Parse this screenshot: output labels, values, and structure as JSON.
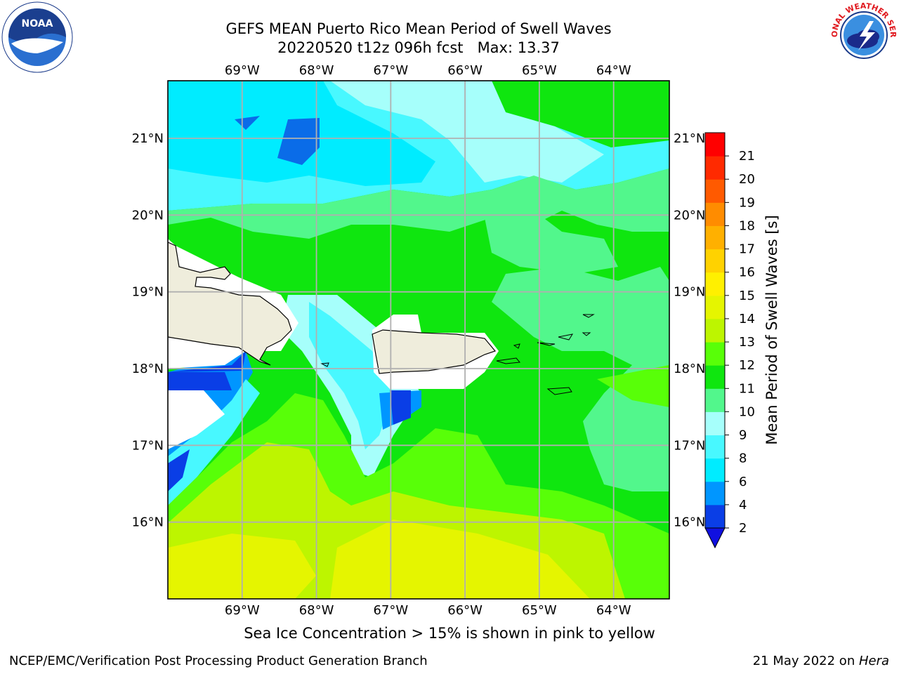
{
  "header": {
    "title_line1": "GEFS MEAN Puerto Rico Mean Period of Swell Waves",
    "title_line2": "20220520 t12z 096h fcst   Max: 13.37"
  },
  "logos": {
    "left": "NOAA",
    "right": "NATIONAL WEATHER SERVICE"
  },
  "map": {
    "lon_ticks": [
      "69°W",
      "68°W",
      "67°W",
      "66°W",
      "65°W",
      "64°W"
    ],
    "lat_ticks": [
      "21°N",
      "20°N",
      "19°N",
      "18°N",
      "17°N",
      "16°N"
    ],
    "lon_values": [
      -69,
      -68,
      -67,
      -66,
      -65,
      -64
    ],
    "lat_values": [
      21,
      20,
      19,
      18,
      17,
      16
    ],
    "lon_range": [
      -70,
      -63.25
    ],
    "lat_range": [
      15,
      21.75
    ],
    "grid": true,
    "land_color": "#efeddc",
    "gridline_color": "#b0b0b0"
  },
  "colorbar": {
    "label": "Mean Period of Swell Waves [s]",
    "ticks": [
      "21",
      "20",
      "19",
      "18",
      "17",
      "16",
      "15",
      "14",
      "13",
      "12",
      "11",
      "10",
      "9",
      "8",
      "6",
      "4",
      "2"
    ],
    "levels": [
      2,
      4,
      6,
      8,
      9,
      10,
      11,
      12,
      13,
      14,
      15,
      16,
      17,
      18,
      19,
      20,
      21
    ],
    "colors": [
      "#0a3ee6",
      "#0096ff",
      "#00ecff",
      "#48f8ff",
      "#a6fffb",
      "#52f78c",
      "#0fe60f",
      "#58ff08",
      "#bdf500",
      "#e5f500",
      "#fff000",
      "#ffd200",
      "#ffb000",
      "#ff8c00",
      "#ff5a00",
      "#ff2a00",
      "#ff0000"
    ],
    "extend_color": "#1010e0"
  },
  "caption": "Sea Ice Concentration > 15% is shown in pink to yellow",
  "footer": {
    "left": "NCEP/EMC/Verification Post Processing Product Generation Branch",
    "right_prefix": "21 May 2022 on ",
    "right_host": "Hera"
  }
}
